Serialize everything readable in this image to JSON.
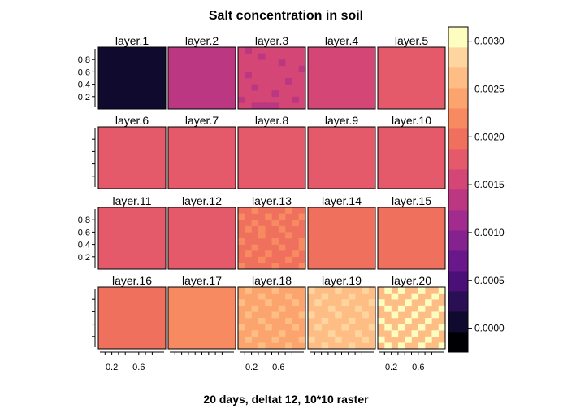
{
  "chart_data": {
    "type": "heatmap",
    "title": "Salt concentration in soil",
    "xlabel": "20 days, deltat 12, 10*10 raster",
    "ylabel": "",
    "panels": [
      "layer.1",
      "layer.2",
      "layer.3",
      "layer.4",
      "layer.5",
      "layer.6",
      "layer.7",
      "layer.8",
      "layer.9",
      "layer.10",
      "layer.11",
      "layer.12",
      "layer.13",
      "layer.14",
      "layer.15",
      "layer.16",
      "layer.17",
      "layer.18",
      "layer.19",
      "layer.20"
    ],
    "grid_rows": 4,
    "grid_cols": 5,
    "raster_size": [
      10,
      10
    ],
    "x_ticks": [
      0.2,
      0.6
    ],
    "x_tick_labels": [
      "0.2",
      "0.6"
    ],
    "y_ticks": [
      0.2,
      0.4,
      0.6,
      0.8
    ],
    "y_tick_labels": [
      "0.2",
      "0.4",
      "0.6",
      "0.8"
    ],
    "xlim": [
      0,
      1
    ],
    "ylim": [
      0,
      1
    ],
    "colorbar": {
      "ticks": [
        0.0,
        0.0005,
        0.001,
        0.0015,
        0.002,
        0.0025,
        0.003
      ],
      "tick_labels": [
        "0.0000",
        "0.0005",
        "0.0010",
        "0.0015",
        "0.0020",
        "0.0025",
        "0.0030"
      ],
      "range": [
        -0.00025,
        0.00315
      ],
      "colors": [
        "#000004",
        "#100b2e",
        "#2b0f55",
        "#4a1078",
        "#69188a",
        "#85228f",
        "#a22c8d",
        "#bc3781",
        "#d34676",
        "#e55a6a",
        "#f0705e",
        "#f78a60",
        "#fba46d",
        "#fdbd84",
        "#fed59e",
        "#fcfdbf"
      ]
    },
    "layers": [
      {
        "name": "layer.1",
        "base": 0.0,
        "patches": []
      },
      {
        "name": "layer.2",
        "base": 0.00125,
        "patches": []
      },
      {
        "name": "layer.3",
        "base": 0.0015,
        "alt": 0.0014,
        "patches": [
          [
            0,
            1
          ],
          [
            1,
            3
          ],
          [
            2,
            6
          ],
          [
            4,
            1
          ],
          [
            5,
            7
          ],
          [
            6,
            2
          ],
          [
            7,
            5
          ],
          [
            8,
            0
          ],
          [
            8,
            8
          ],
          [
            9,
            2
          ],
          [
            9,
            3
          ],
          [
            9,
            4
          ],
          [
            9,
            5
          ],
          [
            3,
            9
          ]
        ]
      },
      {
        "name": "layer.4",
        "base": 0.0015,
        "patches": []
      },
      {
        "name": "layer.5",
        "base": 0.0017,
        "patches": []
      },
      {
        "name": "layer.6",
        "base": 0.0017,
        "patches": []
      },
      {
        "name": "layer.7",
        "base": 0.0017,
        "patches": []
      },
      {
        "name": "layer.8",
        "base": 0.0017,
        "patches": []
      },
      {
        "name": "layer.9",
        "base": 0.0018,
        "alt": 0.0017,
        "patches": [
          [
            2,
            7
          ],
          [
            3,
            8
          ],
          [
            4,
            8
          ],
          [
            5,
            8
          ],
          [
            6,
            8
          ],
          [
            7,
            8
          ],
          [
            7,
            7
          ],
          [
            3,
            7
          ]
        ]
      },
      {
        "name": "layer.10",
        "base": 0.0018,
        "patches": []
      },
      {
        "name": "layer.11",
        "base": 0.0018,
        "patches": []
      },
      {
        "name": "layer.12",
        "base": 0.0018,
        "patches": []
      },
      {
        "name": "layer.13",
        "base": 0.002,
        "alt": 0.0022,
        "patches": [
          [
            0,
            2
          ],
          [
            0,
            7
          ],
          [
            1,
            0
          ],
          [
            1,
            4
          ],
          [
            1,
            6
          ],
          [
            1,
            9
          ],
          [
            2,
            2
          ],
          [
            2,
            5
          ],
          [
            2,
            8
          ],
          [
            3,
            1
          ],
          [
            3,
            6
          ],
          [
            4,
            3
          ],
          [
            4,
            7
          ],
          [
            5,
            0
          ],
          [
            5,
            5
          ],
          [
            5,
            9
          ],
          [
            6,
            2
          ],
          [
            6,
            6
          ],
          [
            7,
            1
          ],
          [
            7,
            4
          ],
          [
            7,
            8
          ],
          [
            8,
            3
          ],
          [
            8,
            7
          ],
          [
            9,
            0
          ],
          [
            9,
            5
          ],
          [
            9,
            9
          ],
          [
            3,
            3
          ],
          [
            6,
            9
          ]
        ]
      },
      {
        "name": "layer.14",
        "base": 0.002,
        "patches": []
      },
      {
        "name": "layer.15",
        "base": 0.002,
        "patches": []
      },
      {
        "name": "layer.16",
        "base": 0.002,
        "patches": []
      },
      {
        "name": "layer.17",
        "base": 0.0022,
        "alt": 0.0021,
        "patches": [
          [
            4,
            6
          ],
          [
            5,
            7
          ],
          [
            6,
            6
          ],
          [
            7,
            6
          ],
          [
            7,
            7
          ],
          [
            7,
            8
          ],
          [
            3,
            2
          ]
        ]
      },
      {
        "name": "layer.18",
        "base": 0.0024,
        "alt": 0.0026,
        "patches": [
          [
            0,
            1
          ],
          [
            0,
            5
          ],
          [
            1,
            3
          ],
          [
            1,
            7
          ],
          [
            2,
            0
          ],
          [
            2,
            4
          ],
          [
            2,
            8
          ],
          [
            3,
            2
          ],
          [
            3,
            6
          ],
          [
            4,
            1
          ],
          [
            4,
            5
          ],
          [
            4,
            9
          ],
          [
            5,
            3
          ],
          [
            5,
            7
          ],
          [
            6,
            0
          ],
          [
            6,
            4
          ],
          [
            6,
            8
          ],
          [
            7,
            2
          ],
          [
            7,
            6
          ],
          [
            8,
            1
          ],
          [
            8,
            5
          ],
          [
            8,
            9
          ],
          [
            9,
            3
          ],
          [
            9,
            7
          ]
        ]
      },
      {
        "name": "layer.19",
        "base": 0.0026,
        "alt": 0.0028,
        "patches": [
          [
            0,
            0
          ],
          [
            0,
            4
          ],
          [
            0,
            8
          ],
          [
            1,
            2
          ],
          [
            1,
            6
          ],
          [
            2,
            1
          ],
          [
            2,
            5
          ],
          [
            2,
            9
          ],
          [
            3,
            3
          ],
          [
            3,
            7
          ],
          [
            4,
            0
          ],
          [
            4,
            4
          ],
          [
            4,
            8
          ],
          [
            5,
            2
          ],
          [
            5,
            6
          ],
          [
            6,
            1
          ],
          [
            6,
            5
          ],
          [
            6,
            9
          ],
          [
            7,
            3
          ],
          [
            7,
            7
          ],
          [
            8,
            0
          ],
          [
            8,
            4
          ],
          [
            8,
            8
          ],
          [
            9,
            2
          ],
          [
            9,
            6
          ]
        ]
      },
      {
        "name": "layer.20",
        "base": 0.0027,
        "alt": 0.003,
        "patches": [
          [
            0,
            1
          ],
          [
            0,
            3
          ],
          [
            0,
            6
          ],
          [
            0,
            9
          ],
          [
            1,
            2
          ],
          [
            1,
            5
          ],
          [
            1,
            8
          ],
          [
            2,
            0
          ],
          [
            2,
            4
          ],
          [
            2,
            7
          ],
          [
            3,
            1
          ],
          [
            3,
            3
          ],
          [
            3,
            6
          ],
          [
            3,
            9
          ],
          [
            4,
            2
          ],
          [
            4,
            5
          ],
          [
            4,
            8
          ],
          [
            5,
            0
          ],
          [
            5,
            4
          ],
          [
            5,
            7
          ],
          [
            6,
            1
          ],
          [
            6,
            3
          ],
          [
            6,
            6
          ],
          [
            6,
            9
          ],
          [
            7,
            2
          ],
          [
            7,
            5
          ],
          [
            7,
            8
          ],
          [
            8,
            0
          ],
          [
            8,
            4
          ],
          [
            8,
            7
          ],
          [
            9,
            1
          ],
          [
            9,
            3
          ],
          [
            9,
            6
          ],
          [
            9,
            9
          ]
        ]
      }
    ]
  }
}
